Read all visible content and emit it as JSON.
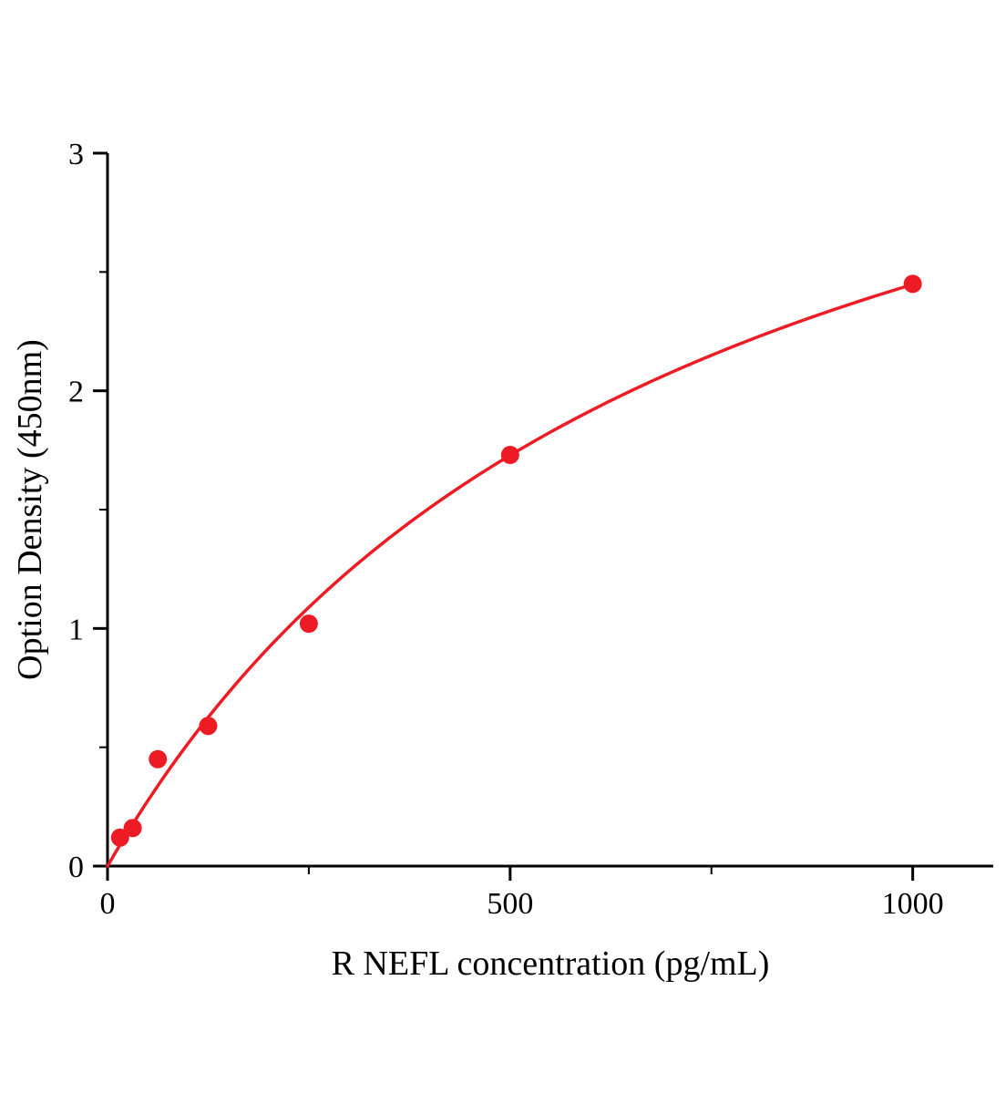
{
  "page": {
    "background_color": "#ffffff",
    "text_color": "#000000"
  },
  "chart_data": {
    "type": "scatter",
    "title": "",
    "xlabel": "R NEFL concentration (pg/mL)",
    "ylabel": "Option Density (450nm)",
    "xlim": [
      0,
      1100
    ],
    "ylim": [
      0,
      3
    ],
    "x_major_ticks": [
      0,
      500,
      1000
    ],
    "x_minor_ticks": [
      250,
      750
    ],
    "y_major_ticks": [
      0,
      1,
      2,
      3
    ],
    "y_minor_ticks": [
      0.5,
      1.5,
      2.5
    ],
    "grid": false,
    "legend": null,
    "points": [
      [
        15.6,
        0.12
      ],
      [
        31.25,
        0.16
      ],
      [
        62.5,
        0.45
      ],
      [
        125,
        0.59
      ],
      [
        250,
        1.02
      ],
      [
        500,
        1.73
      ],
      [
        1000,
        2.45
      ]
    ],
    "fit_curve": {
      "model": "y = Vmax*x/(Km+x)",
      "vmax": 4.19,
      "km": 712,
      "x_range": [
        0,
        1000
      ]
    },
    "point_color": "#ed1c24",
    "curve_color": "#ed1c24",
    "axis_color": "#000000"
  }
}
